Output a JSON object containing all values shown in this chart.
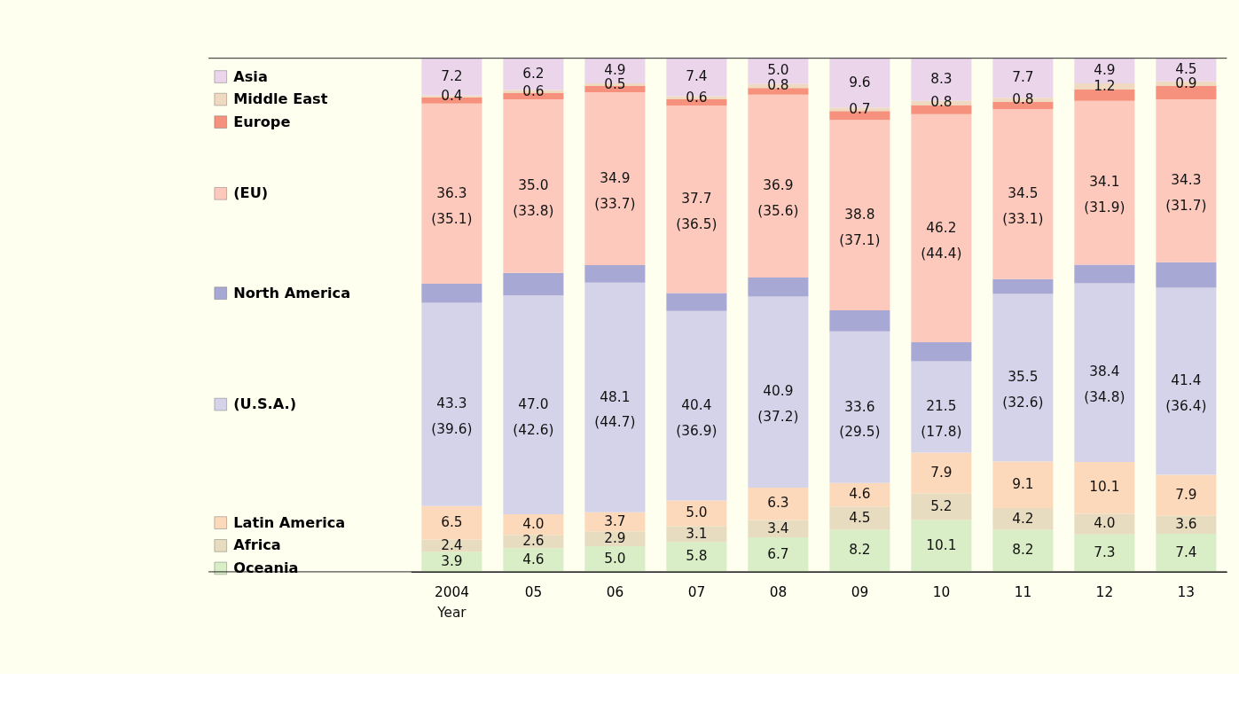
{
  "chart_data": {
    "type": "bar",
    "stacked": true,
    "xlabel": "Year",
    "categories": [
      "2004",
      "05",
      "06",
      "07",
      "08",
      "09",
      "10",
      "11",
      "12",
      "13"
    ],
    "series": [
      {
        "name": "Oceania",
        "color": "#d9edc6",
        "values": [
          3.9,
          4.6,
          5.0,
          5.8,
          6.7,
          8.2,
          10.1,
          8.2,
          7.3,
          7.4
        ],
        "value_labels": [
          "3.9",
          "4.6",
          "5.0",
          "5.8",
          "6.7",
          "8.2",
          "10.1",
          "8.2",
          "7.3",
          "7.4"
        ]
      },
      {
        "name": "Africa",
        "color": "#e8dcc0",
        "values": [
          2.4,
          2.6,
          2.9,
          3.1,
          3.4,
          4.5,
          5.2,
          4.2,
          4.0,
          3.6
        ],
        "value_labels": [
          "2.4",
          "2.6",
          "2.9",
          "3.1",
          "3.4",
          "4.5",
          "5.2",
          "4.2",
          "4.0",
          "3.6"
        ]
      },
      {
        "name": "Latin America",
        "color": "#fdd9bb",
        "values": [
          6.5,
          4.0,
          3.7,
          5.0,
          6.3,
          4.6,
          7.9,
          9.1,
          10.1,
          7.9
        ],
        "value_labels": [
          "6.5",
          "4.0",
          "3.7",
          "5.0",
          "6.3",
          "4.6",
          "7.9",
          "9.1",
          "10.1",
          "7.9"
        ]
      },
      {
        "name": "(U.S.A.)",
        "color": "#d5d3ea",
        "values": [
          39.6,
          42.6,
          44.7,
          36.9,
          37.2,
          29.5,
          17.8,
          32.6,
          34.8,
          36.4
        ],
        "value_labels": [
          "43.3\n(39.6)",
          "47.0\n(42.6)",
          "48.1\n(44.7)",
          "40.4\n(36.9)",
          "40.9\n(37.2)",
          "33.6\n(29.5)",
          "21.5\n(17.8)",
          "35.5\n(32.6)",
          "38.4\n(34.8)",
          "41.4\n(36.4)"
        ]
      },
      {
        "name": "North America",
        "color": "#a8a8d4",
        "values": [
          3.7,
          4.4,
          3.4,
          3.5,
          3.7,
          4.1,
          3.7,
          2.9,
          3.6,
          5.0
        ]
      },
      {
        "name": "(EU)",
        "color": "#fdc9bd",
        "values": [
          35.1,
          33.8,
          33.7,
          36.5,
          35.6,
          37.1,
          44.4,
          33.1,
          31.9,
          31.7
        ],
        "value_labels": [
          "36.3\n(35.1)",
          "35.0\n(33.8)",
          "34.9\n(33.7)",
          "37.7\n(36.5)",
          "36.9\n(35.6)",
          "38.8\n(37.1)",
          "46.2\n(44.4)",
          "34.5\n(33.1)",
          "34.1\n(31.9)",
          "34.3\n(31.7)"
        ]
      },
      {
        "name": "Europe",
        "color": "#f5917d",
        "values": [
          1.2,
          1.2,
          1.2,
          1.2,
          1.3,
          1.7,
          1.8,
          1.4,
          2.2,
          2.6
        ]
      },
      {
        "name": "Middle East",
        "color": "#efd9c1",
        "values": [
          0.4,
          0.6,
          0.5,
          0.6,
          0.8,
          0.7,
          0.8,
          0.8,
          1.2,
          0.9
        ],
        "value_labels": [
          "0.4",
          "0.6",
          "0.5",
          "0.6",
          "0.8",
          "0.7",
          "0.8",
          "0.8",
          "1.2",
          "0.9"
        ]
      },
      {
        "name": "Asia",
        "color": "#ebd5eb",
        "values": [
          7.2,
          6.2,
          4.9,
          7.4,
          5.0,
          9.6,
          8.3,
          7.7,
          4.9,
          4.5
        ],
        "value_labels": [
          "7.2",
          "6.2",
          "4.9",
          "7.4",
          "5.0",
          "9.6",
          "8.3",
          "7.7",
          "4.9",
          "4.5"
        ]
      }
    ],
    "tick_labels": "x",
    "grid": false,
    "legend": "left"
  }
}
